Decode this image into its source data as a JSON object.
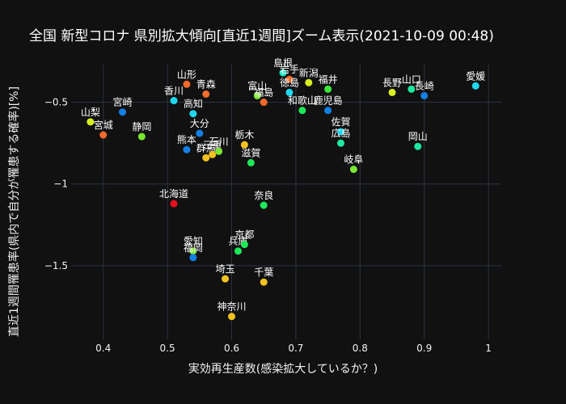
{
  "chart_data": {
    "type": "scatter",
    "title": "全国 新型コロナ 県別拡大傾向[直近1週間]ズーム表示(2021-10-09 00:48)",
    "xlabel": "実効再生産数(感染拡大しているか？)",
    "ylabel": "直近1週間罹患率(県内で自分が罹患する確率)[%]",
    "xlim": [
      0.35,
      1.02
    ],
    "ylim": [
      -1.95,
      -0.27
    ],
    "x_ticks": [
      0.4,
      0.5,
      0.6,
      0.7,
      0.8,
      0.9,
      1
    ],
    "x_tick_labels": [
      "0.4",
      "0.5",
      "0.6",
      "0.7",
      "0.8",
      "0.9",
      "1"
    ],
    "y_ticks": [
      -0.5,
      -1,
      -1.5
    ],
    "y_tick_labels": [
      "−0.5",
      "−1",
      "−1.5"
    ],
    "points": [
      {
        "name": "山梨",
        "x": 0.38,
        "y": -0.62,
        "color": "#d8f020"
      },
      {
        "name": "宮城",
        "x": 0.4,
        "y": -0.7,
        "color": "#f26b2a"
      },
      {
        "name": "宮崎",
        "x": 0.43,
        "y": -0.56,
        "color": "#1380e8"
      },
      {
        "name": "静岡",
        "x": 0.46,
        "y": -0.71,
        "color": "#7ae632"
      },
      {
        "name": "北海道",
        "x": 0.51,
        "y": -1.12,
        "color": "#e8101a"
      },
      {
        "name": "香川",
        "x": 0.51,
        "y": -0.49,
        "color": "#1fd8f0"
      },
      {
        "name": "山形",
        "x": 0.53,
        "y": -0.39,
        "color": "#f26b2a"
      },
      {
        "name": "熊本",
        "x": 0.53,
        "y": -0.79,
        "color": "#1380e8"
      },
      {
        "name": "高知",
        "x": 0.54,
        "y": -0.57,
        "color": "#1fd8f0"
      },
      {
        "name": "愛知",
        "x": 0.54,
        "y": -1.41,
        "color": "#7ae632"
      },
      {
        "name": "福岡",
        "x": 0.54,
        "y": -1.45,
        "color": "#1380e8"
      },
      {
        "name": "大分",
        "x": 0.55,
        "y": -0.69,
        "color": "#1380e8"
      },
      {
        "name": "青森",
        "x": 0.56,
        "y": -0.45,
        "color": "#f26b2a"
      },
      {
        "name": "群馬",
        "x": 0.56,
        "y": -0.84,
        "color": "#f2c320"
      },
      {
        "name": "三重",
        "x": 0.57,
        "y": -0.82,
        "color": "#f2c320"
      },
      {
        "name": "石川",
        "x": 0.58,
        "y": -0.8,
        "color": "#7ae632"
      },
      {
        "name": "埼玉",
        "x": 0.59,
        "y": -1.58,
        "color": "#f2c320"
      },
      {
        "name": "神奈川",
        "x": 0.6,
        "y": -1.81,
        "color": "#f2c320"
      },
      {
        "name": "兵庫",
        "x": 0.61,
        "y": -1.41,
        "color": "#1ce85a"
      },
      {
        "name": "京都",
        "x": 0.62,
        "y": -1.37,
        "color": "#1ce85a"
      },
      {
        "name": "栃木",
        "x": 0.62,
        "y": -0.76,
        "color": "#f2c320"
      },
      {
        "name": "滋賀",
        "x": 0.63,
        "y": -0.87,
        "color": "#1ce85a"
      },
      {
        "name": "富山",
        "x": 0.64,
        "y": -0.46,
        "color": "#7ae632"
      },
      {
        "name": "福島",
        "x": 0.65,
        "y": -0.5,
        "color": "#f26b2a"
      },
      {
        "name": "奈良",
        "x": 0.65,
        "y": -1.13,
        "color": "#1ce85a"
      },
      {
        "name": "千葉",
        "x": 0.65,
        "y": -1.6,
        "color": "#f2c320"
      },
      {
        "name": "島根",
        "x": 0.68,
        "y": -0.32,
        "color": "#1fe8c8"
      },
      {
        "name": "岩手",
        "x": 0.69,
        "y": -0.36,
        "color": "#f26b2a"
      },
      {
        "name": "徳島",
        "x": 0.69,
        "y": -0.44,
        "color": "#1fd8f0"
      },
      {
        "name": "和歌山",
        "x": 0.71,
        "y": -0.55,
        "color": "#1ce85a"
      },
      {
        "name": "新潟",
        "x": 0.72,
        "y": -0.38,
        "color": "#d8f020"
      },
      {
        "name": "鹿児島",
        "x": 0.75,
        "y": -0.55,
        "color": "#1380e8"
      },
      {
        "name": "福井",
        "x": 0.75,
        "y": -0.42,
        "color": "#3ce83c"
      },
      {
        "name": "佐賀",
        "x": 0.77,
        "y": -0.68,
        "color": "#1fd8f0"
      },
      {
        "name": "広島",
        "x": 0.77,
        "y": -0.75,
        "color": "#1ce8a0"
      },
      {
        "name": "岐阜",
        "x": 0.79,
        "y": -0.91,
        "color": "#7ae632"
      },
      {
        "name": "長野",
        "x": 0.85,
        "y": -0.44,
        "color": "#d8f020"
      },
      {
        "name": "山口",
        "x": 0.88,
        "y": -0.42,
        "color": "#1ce8a0"
      },
      {
        "name": "岡山",
        "x": 0.89,
        "y": -0.77,
        "color": "#1ce8a0"
      },
      {
        "name": "長崎",
        "x": 0.9,
        "y": -0.46,
        "color": "#1380e8"
      },
      {
        "name": "愛媛",
        "x": 0.98,
        "y": -0.4,
        "color": "#1fd8f0"
      }
    ],
    "grid": true,
    "legend": "none"
  },
  "colors": {
    "background": "#111111",
    "grid": "#283442",
    "text": "#f2f2f2"
  }
}
